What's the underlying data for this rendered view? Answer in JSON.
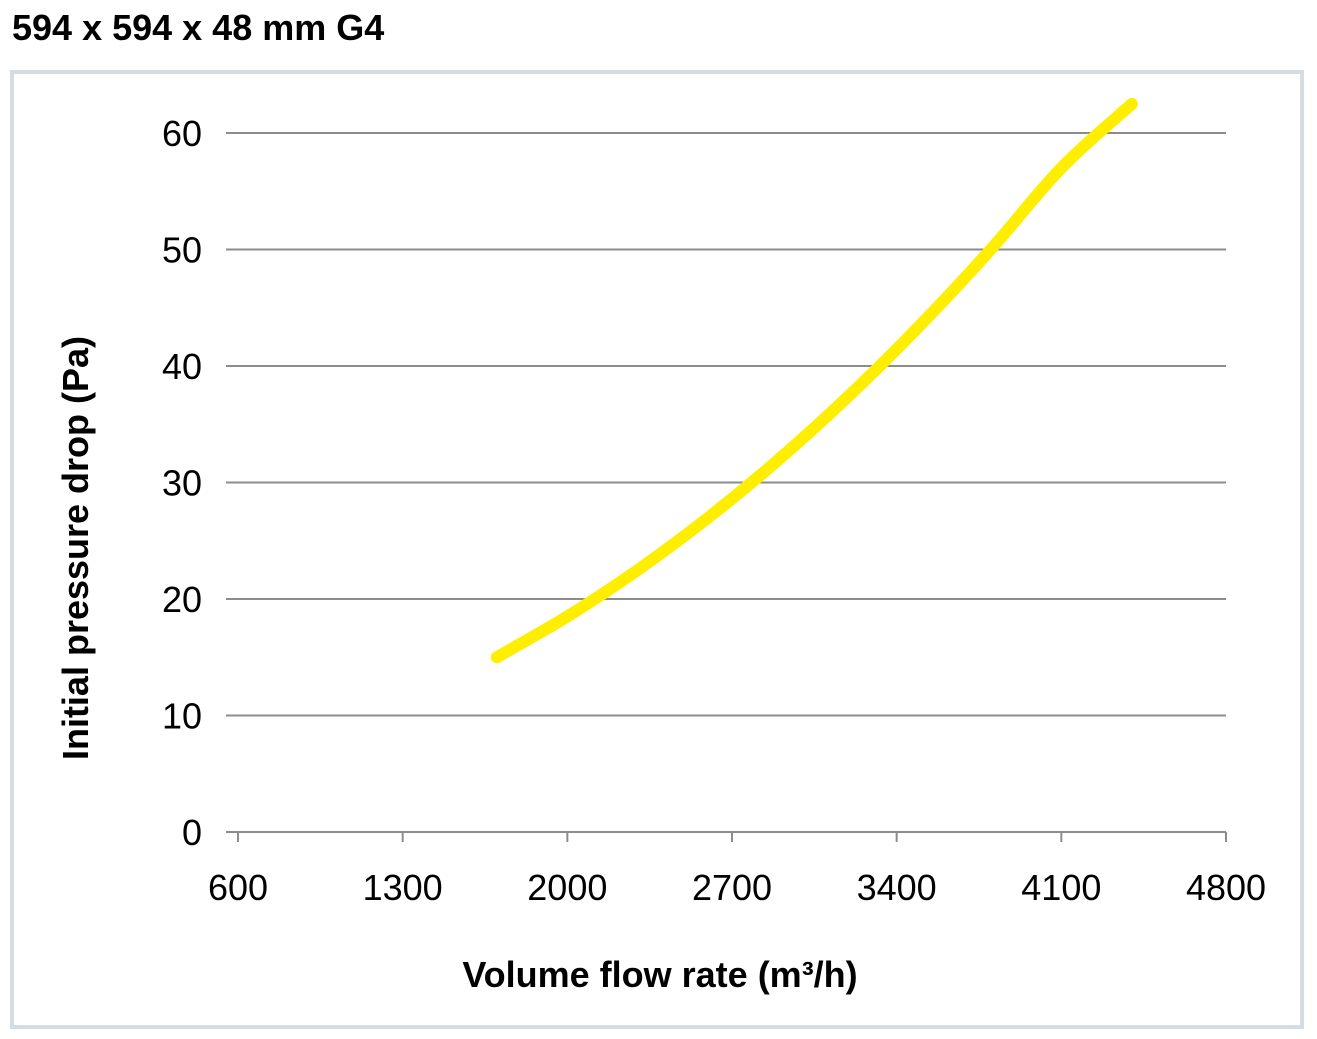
{
  "title": "594 x 594 x 48 mm G4",
  "chart_data": {
    "type": "line",
    "xlabel": "Volume flow rate (m³/h)",
    "ylabel": "Initial pressure drop (Pa)",
    "xlim": [
      600,
      4800
    ],
    "ylim": [
      0,
      60
    ],
    "x_ticks": [
      600,
      1300,
      2000,
      2700,
      3400,
      4100,
      4800
    ],
    "y_ticks": [
      0,
      10,
      20,
      30,
      40,
      50,
      60
    ],
    "grid": "horizontal",
    "legend": "none",
    "series": [
      {
        "color": "#ffee00",
        "x": [
          1700,
          2000,
          2300,
          2600,
          2900,
          3200,
          3500,
          3800,
          4100,
          4400
        ],
        "y": [
          15,
          18.5,
          22.5,
          27,
          32,
          37.5,
          43.5,
          50,
          57,
          62.5
        ]
      }
    ]
  }
}
